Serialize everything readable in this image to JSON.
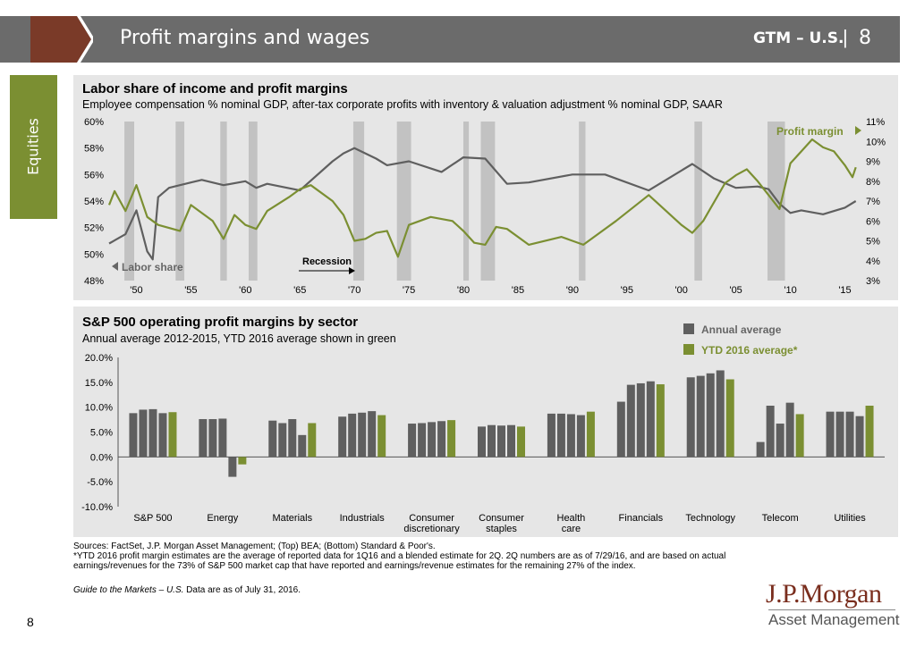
{
  "header": {
    "title": "Profit margins and wages",
    "gtm": "GTM – U.S.",
    "page_number": "8"
  },
  "side_tab": {
    "label": "Equities"
  },
  "footer": {
    "sources": "Sources: FactSet, J.P. Morgan Asset Management; (Top) BEA; (Bottom) Standard & Poor's.",
    "note": "*YTD 2016 profit margin estimates are the average of reported data for 1Q16 and a blended estimate for 2Q. 2Q numbers are as of 7/29/16, and are based on actual earnings/revenues for the 73% of S&P 500 market cap that have reported and earnings/revenue estimates for the remaining 27% of the index.",
    "guide_italic": "Guide to the Markets – U.S.",
    "guide_rest": " Data are as of July 31, 2016.",
    "page_number": "8",
    "logo_line1": "J.P.Morgan",
    "logo_line2": "Asset Management"
  },
  "colors": {
    "gray_series": "#5f5f5f",
    "green_series": "#7b8f32",
    "recession": "#c2c2c2",
    "panel": "#e6e6e6",
    "header": "#6b6b6b",
    "arrow": "#7a3a28"
  },
  "chart_data": [
    {
      "type": "line",
      "title": "Labor share of income and profit margins",
      "subtitle": "Employee compensation % nominal GDP, after-tax corporate profits with inventory & valuation adjustment % nominal GDP, SAAR",
      "x_ticks": [
        "'50",
        "'55",
        "'60",
        "'65",
        "'70",
        "'75",
        "'80",
        "'85",
        "'90",
        "'95",
        "'00",
        "'05",
        "'10",
        "'15"
      ],
      "left_axis": {
        "ticks": [
          "48%",
          "50%",
          "52%",
          "54%",
          "56%",
          "58%",
          "60%"
        ],
        "ylim": [
          48,
          60
        ]
      },
      "right_axis": {
        "ticks": [
          "3%",
          "4%",
          "5%",
          "6%",
          "7%",
          "8%",
          "9%",
          "10%",
          "11%"
        ],
        "ylim": [
          3,
          11
        ]
      },
      "annotations": {
        "labor": "Labor share",
        "profit": "Profit margin",
        "recession": "Recession"
      },
      "xlim": [
        1947.5,
        2016.6
      ],
      "recessions": [
        [
          1948.9,
          1949.8
        ],
        [
          1953.6,
          1954.4
        ],
        [
          1957.7,
          1958.3
        ],
        [
          1960.3,
          1961.1
        ],
        [
          1969.9,
          1970.9
        ],
        [
          1973.9,
          1975.2
        ],
        [
          1980.0,
          1980.5
        ],
        [
          1981.6,
          1982.9
        ],
        [
          1990.6,
          1991.2
        ],
        [
          2001.2,
          2001.9
        ],
        [
          2007.9,
          2009.5
        ]
      ],
      "series": [
        {
          "name": "Labor share",
          "axis": "left",
          "x": [
            1947.5,
            1949,
            1950,
            1951,
            1951.5,
            1952,
            1953,
            1955,
            1956,
            1958,
            1960,
            1961,
            1962,
            1965,
            1968,
            1969,
            1970,
            1972,
            1973,
            1975,
            1978,
            1980,
            1982,
            1984,
            1986,
            1990,
            1993,
            1997,
            1999,
            2001,
            2003,
            2005,
            2007,
            2008,
            2009,
            2010,
            2011,
            2013,
            2015,
            2016
          ],
          "y": [
            50.8,
            51.5,
            53.3,
            50.2,
            49.6,
            54.3,
            55.0,
            55.4,
            55.6,
            55.2,
            55.5,
            55.0,
            55.3,
            54.8,
            57.0,
            57.6,
            58.0,
            57.2,
            56.7,
            57.0,
            56.2,
            57.3,
            57.2,
            55.3,
            55.4,
            56.0,
            56.0,
            54.8,
            55.8,
            56.8,
            55.7,
            55.0,
            55.1,
            54.9,
            53.8,
            53.1,
            53.3,
            53.0,
            53.5,
            54.0
          ]
        },
        {
          "name": "Profit margin",
          "axis": "right",
          "x": [
            1947.5,
            1948,
            1949,
            1950,
            1951,
            1952,
            1954,
            1955,
            1957,
            1958,
            1959,
            1960,
            1961,
            1962,
            1964,
            1965,
            1966,
            1968,
            1969,
            1970,
            1971,
            1972,
            1973,
            1974,
            1975,
            1977,
            1979,
            1980,
            1981,
            1982,
            1983,
            1984,
            1986,
            1989,
            1991,
            1994,
            1997,
            1998,
            2000,
            2001,
            2002,
            2004,
            2005,
            2006,
            2007,
            2008,
            2009,
            2010,
            2011,
            2012,
            2013,
            2014,
            2015,
            2015.7,
            2016
          ],
          "y": [
            6.8,
            7.5,
            6.5,
            7.8,
            6.2,
            5.8,
            5.5,
            6.8,
            6.0,
            5.1,
            6.3,
            5.8,
            5.6,
            6.5,
            7.2,
            7.6,
            7.8,
            7.0,
            6.3,
            5.0,
            5.1,
            5.4,
            5.5,
            4.2,
            5.8,
            6.2,
            6.0,
            5.5,
            4.9,
            4.8,
            5.7,
            5.6,
            4.8,
            5.2,
            4.8,
            6.0,
            7.3,
            6.8,
            5.8,
            5.4,
            6.0,
            7.9,
            8.3,
            8.6,
            8.0,
            7.3,
            6.6,
            8.9,
            9.5,
            10.1,
            9.7,
            9.5,
            8.8,
            8.2,
            8.7
          ]
        }
      ]
    },
    {
      "type": "bar",
      "title": "S&P 500 operating profit margins by sector",
      "subtitle": "Annual average 2012-2015, YTD 2016 average shown in green",
      "legend": [
        "Annual average",
        "YTD 2016 average*"
      ],
      "ylim": [
        -10,
        20
      ],
      "y_ticks": [
        "-10.0%",
        "-5.0%",
        "0.0%",
        "5.0%",
        "10.0%",
        "15.0%",
        "20.0%"
      ],
      "categories": [
        {
          "label": "S&P 500",
          "values": [
            8.8,
            9.5,
            9.6,
            8.8,
            9.0
          ]
        },
        {
          "label": "Energy",
          "values": [
            7.6,
            7.6,
            7.7,
            -4.0,
            -1.5
          ]
        },
        {
          "label": "Materials",
          "values": [
            7.3,
            6.8,
            7.6,
            4.4,
            6.8
          ]
        },
        {
          "label": "Industrials",
          "values": [
            8.1,
            8.7,
            8.9,
            9.2,
            8.4
          ]
        },
        {
          "label": "Consumer discretionary",
          "values": [
            6.7,
            6.8,
            7.0,
            7.2,
            7.4
          ]
        },
        {
          "label": "Consumer staples",
          "values": [
            6.1,
            6.4,
            6.3,
            6.4,
            6.1
          ]
        },
        {
          "label": "Health care",
          "values": [
            8.7,
            8.7,
            8.6,
            8.4,
            9.1
          ]
        },
        {
          "label": "Financials",
          "values": [
            11.1,
            14.5,
            14.8,
            15.2,
            14.6
          ]
        },
        {
          "label": "Technology",
          "values": [
            16.0,
            16.3,
            16.8,
            17.4,
            15.6
          ]
        },
        {
          "label": "Telecom",
          "values": [
            3.0,
            10.3,
            6.7,
            10.9,
            8.6
          ]
        },
        {
          "label": "Utilities",
          "values": [
            9.1,
            9.1,
            9.1,
            8.2,
            10.3
          ]
        }
      ]
    }
  ]
}
